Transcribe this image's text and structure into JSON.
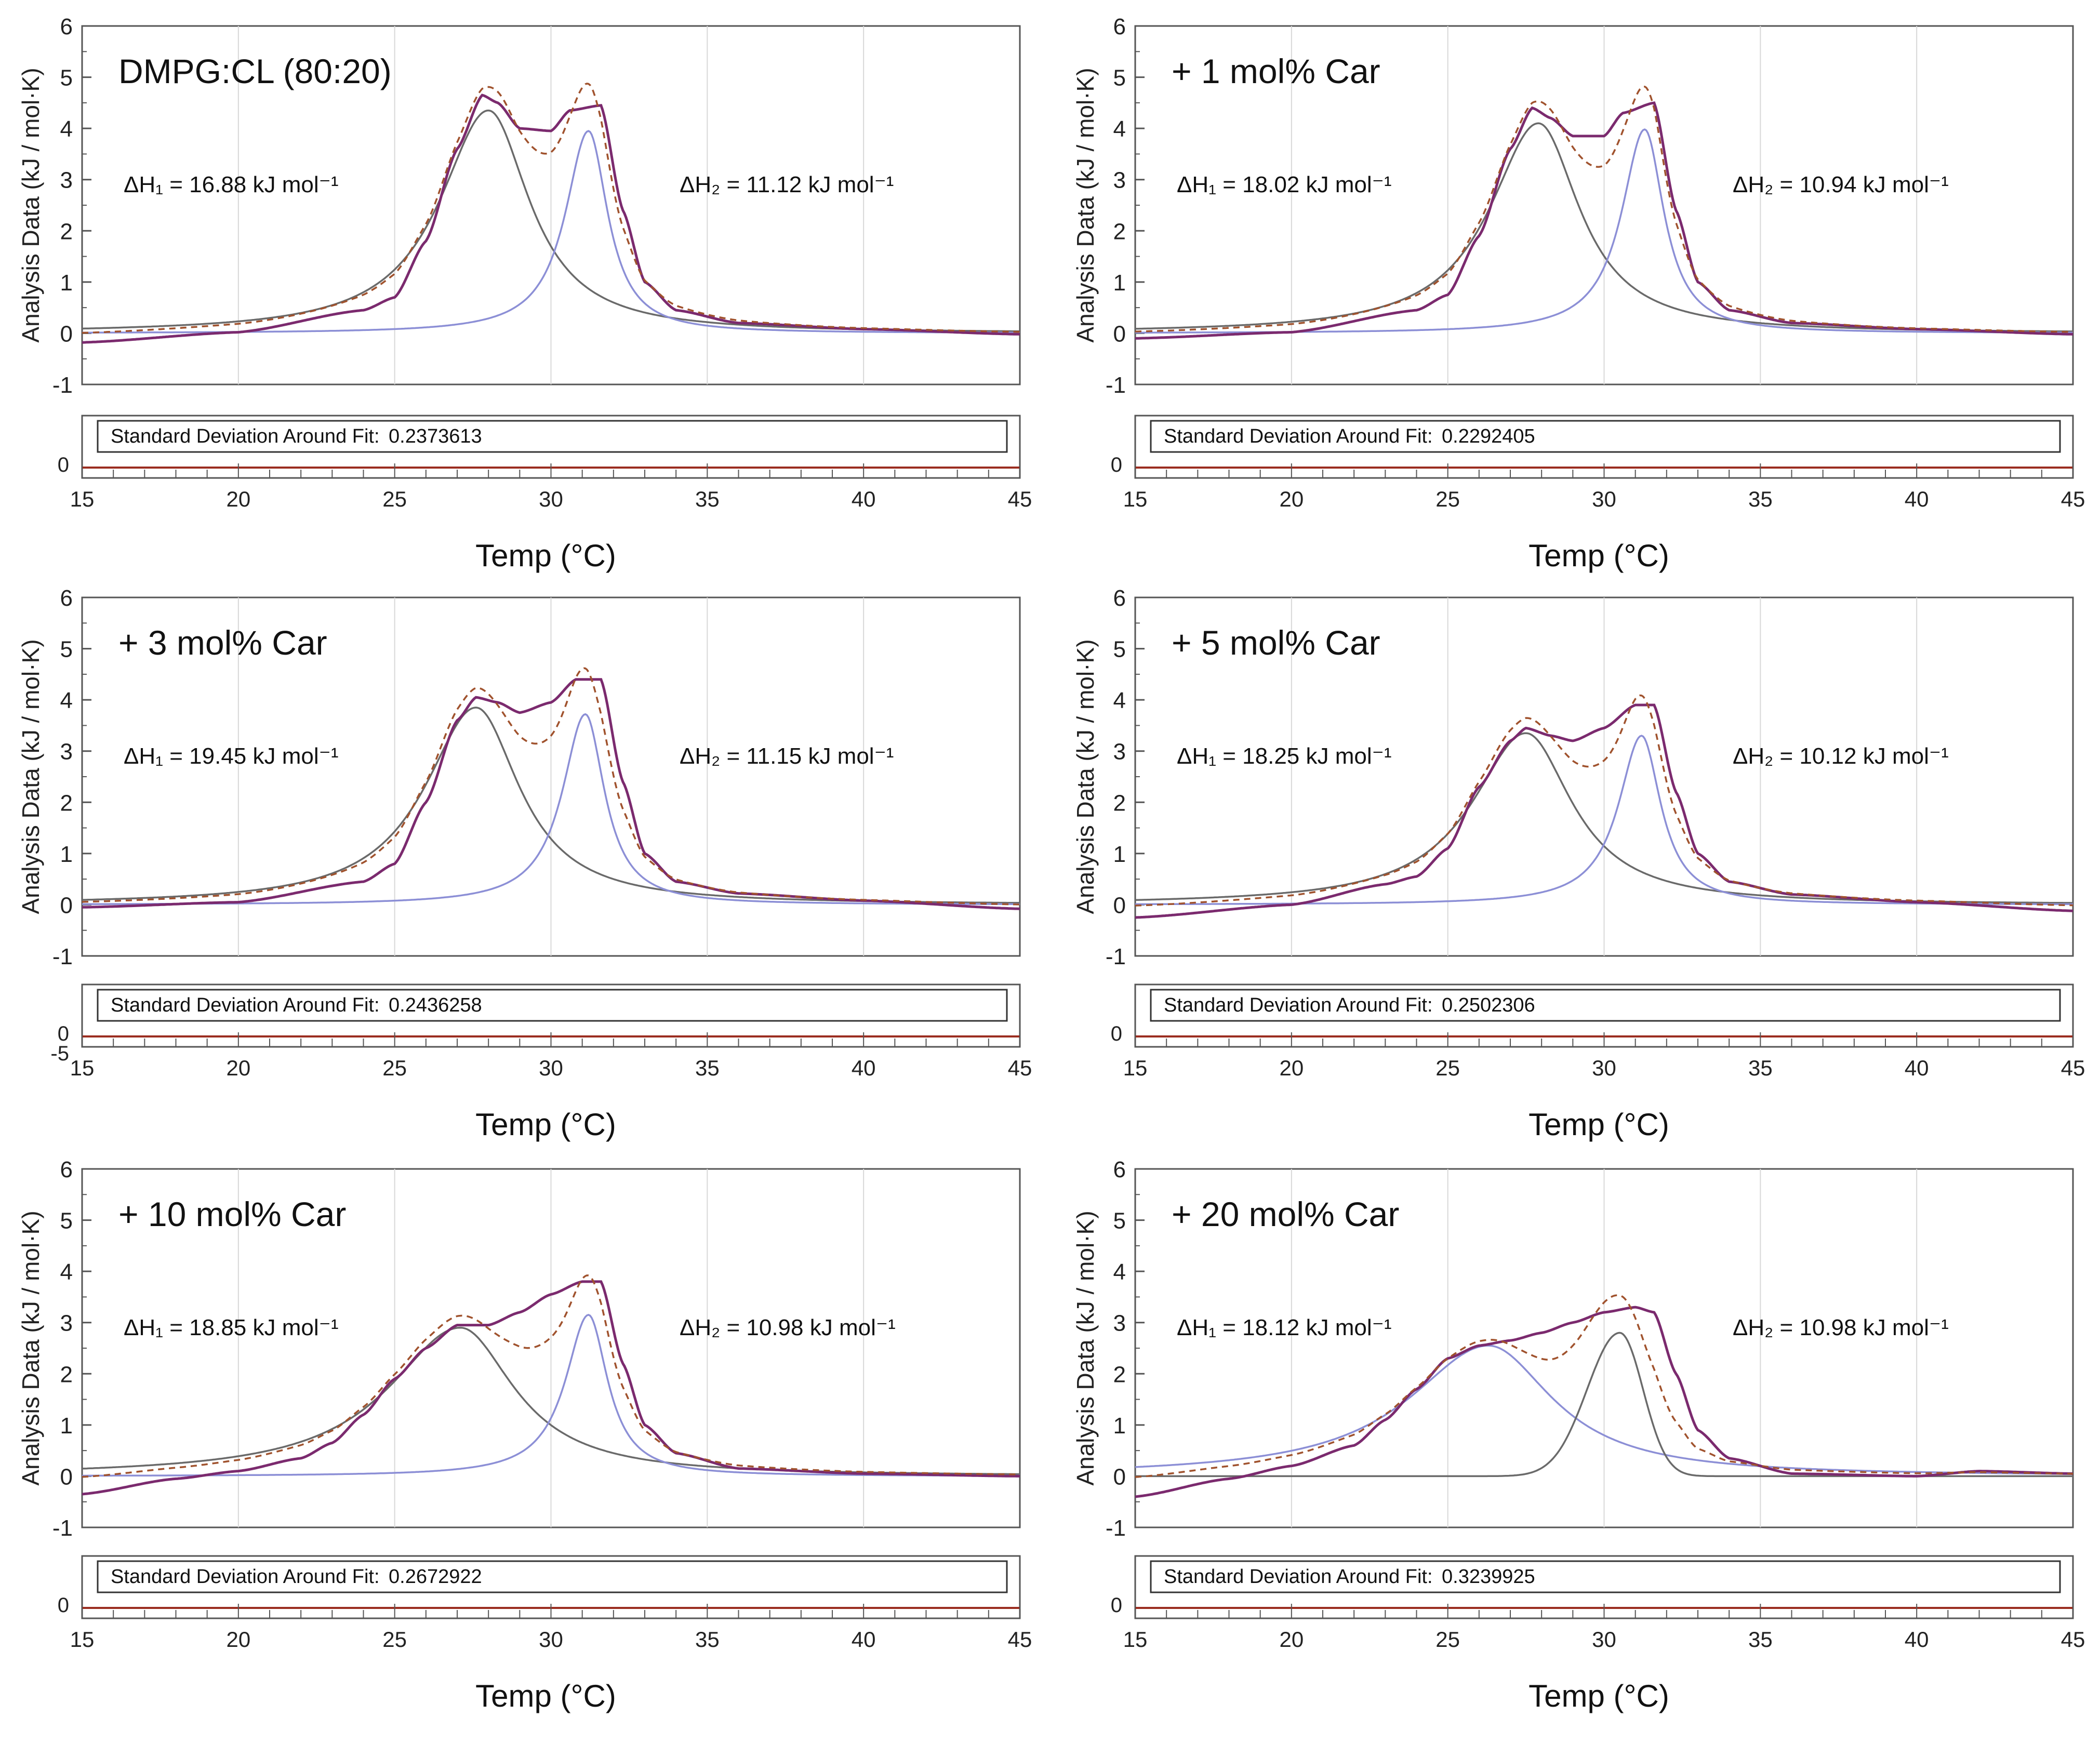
{
  "figure": {
    "xlabel": "Temp (°C)",
    "ylabel": "Analysis Data (kJ / mol·K)",
    "xlim": [
      15,
      45
    ],
    "ylim": [
      -1,
      6
    ],
    "xticks": [
      "15",
      "20",
      "25",
      "30",
      "35",
      "40",
      "45"
    ],
    "yticks": [
      "-1",
      "0",
      "1",
      "2",
      "3",
      "4",
      "5",
      "6"
    ],
    "residual_label": "Standard Deviation Around Fit:",
    "colors": {
      "measured": "#7b2a6e",
      "cumulative_fit": "#a0522d",
      "peak_gray": "#6a6a6a",
      "peak_blue": "#8c8fd6",
      "residual": "#9b2d20",
      "frame": "#555555"
    }
  },
  "chart_data": [
    {
      "type": "line",
      "title": "DMPG:CL (80:20)",
      "dH1": "ΔH₁ = 16.88 kJ mol⁻¹",
      "dH2": "ΔH₂ = 11.12 kJ mol⁻¹",
      "std_dev": "0.2373613",
      "residual_ticks": [
        "0"
      ],
      "peaks": [
        {
          "center": 28.0,
          "height": 4.35,
          "w_left": 1.9,
          "w_right": 1.6,
          "shape": "lorentz",
          "color": "peak_gray"
        },
        {
          "center": 31.2,
          "height": 3.95,
          "w_left": 0.9,
          "w_right": 0.75,
          "shape": "lorentz",
          "color": "peak_blue"
        }
      ],
      "measured_points": [
        [
          15,
          -0.18
        ],
        [
          20,
          0.02
        ],
        [
          24,
          0.45
        ],
        [
          25,
          0.7
        ],
        [
          26,
          1.8
        ],
        [
          27,
          3.6
        ],
        [
          27.8,
          4.65
        ],
        [
          28.3,
          4.5
        ],
        [
          29,
          4.0
        ],
        [
          30,
          3.95
        ],
        [
          30.6,
          4.35
        ],
        [
          31.6,
          4.45
        ],
        [
          32.3,
          2.4
        ],
        [
          33,
          1.0
        ],
        [
          34,
          0.45
        ],
        [
          36,
          0.2
        ],
        [
          40,
          0.08
        ],
        [
          45,
          -0.02
        ]
      ]
    },
    {
      "type": "line",
      "title": "+ 1 mol% Car",
      "dH1": "ΔH₁ = 18.02 kJ mol⁻¹",
      "dH2": "ΔH₂ = 10.94 kJ mol⁻¹",
      "std_dev": "0.2292405",
      "residual_ticks": [
        "0"
      ],
      "peaks": [
        {
          "center": 27.9,
          "height": 4.1,
          "w_left": 1.9,
          "w_right": 1.6,
          "shape": "lorentz",
          "color": "peak_gray"
        },
        {
          "center": 31.3,
          "height": 3.98,
          "w_left": 0.9,
          "w_right": 0.75,
          "shape": "lorentz",
          "color": "peak_blue"
        }
      ],
      "measured_points": [
        [
          15,
          -0.1
        ],
        [
          20,
          0.02
        ],
        [
          24,
          0.45
        ],
        [
          25,
          0.75
        ],
        [
          26,
          1.9
        ],
        [
          27,
          3.6
        ],
        [
          27.7,
          4.4
        ],
        [
          28.3,
          4.2
        ],
        [
          29,
          3.85
        ],
        [
          30,
          3.85
        ],
        [
          30.6,
          4.3
        ],
        [
          31.6,
          4.5
        ],
        [
          32.3,
          2.4
        ],
        [
          33,
          1.0
        ],
        [
          34,
          0.45
        ],
        [
          36,
          0.2
        ],
        [
          40,
          0.08
        ],
        [
          45,
          -0.02
        ]
      ]
    },
    {
      "type": "line",
      "title": "+ 3 mol% Car",
      "dH1": "ΔH₁ = 19.45 kJ mol⁻¹",
      "dH2": "ΔH₂ = 11.15 kJ mol⁻¹",
      "std_dev": "0.2436258",
      "residual_ticks": [
        "0",
        "-5"
      ],
      "peaks": [
        {
          "center": 27.6,
          "height": 3.85,
          "w_left": 2.0,
          "w_right": 1.7,
          "shape": "lorentz",
          "color": "peak_gray"
        },
        {
          "center": 31.1,
          "height": 3.72,
          "w_left": 0.9,
          "w_right": 0.75,
          "shape": "lorentz",
          "color": "peak_blue"
        }
      ],
      "measured_points": [
        [
          15,
          -0.05
        ],
        [
          20,
          0.05
        ],
        [
          24,
          0.45
        ],
        [
          25,
          0.8
        ],
        [
          26,
          2.0
        ],
        [
          27,
          3.6
        ],
        [
          27.6,
          4.05
        ],
        [
          28.3,
          3.95
        ],
        [
          29,
          3.75
        ],
        [
          30,
          3.95
        ],
        [
          30.8,
          4.4
        ],
        [
          31.6,
          4.4
        ],
        [
          32.3,
          2.4
        ],
        [
          33,
          1.0
        ],
        [
          34,
          0.45
        ],
        [
          36,
          0.22
        ],
        [
          40,
          0.08
        ],
        [
          45,
          -0.08
        ]
      ]
    },
    {
      "type": "line",
      "title": "+ 5 mol% Car",
      "dH1": "ΔH₁ = 18.25 kJ mol⁻¹",
      "dH2": "ΔH₂ = 10.12 kJ mol⁻¹",
      "std_dev": "0.2502306",
      "residual_ticks": [
        "0"
      ],
      "peaks": [
        {
          "center": 27.5,
          "height": 3.35,
          "w_left": 2.1,
          "w_right": 1.8,
          "shape": "lorentz",
          "color": "peak_gray"
        },
        {
          "center": 31.2,
          "height": 3.3,
          "w_left": 0.9,
          "w_right": 0.75,
          "shape": "lorentz",
          "color": "peak_blue"
        }
      ],
      "measured_points": [
        [
          15,
          -0.25
        ],
        [
          20,
          0.0
        ],
        [
          23,
          0.4
        ],
        [
          24,
          0.55
        ],
        [
          25,
          1.1
        ],
        [
          26,
          2.3
        ],
        [
          27,
          3.2
        ],
        [
          27.5,
          3.45
        ],
        [
          28.3,
          3.3
        ],
        [
          29,
          3.2
        ],
        [
          30,
          3.45
        ],
        [
          31,
          3.9
        ],
        [
          31.6,
          3.9
        ],
        [
          32.3,
          2.2
        ],
        [
          33,
          1.0
        ],
        [
          34,
          0.45
        ],
        [
          36,
          0.2
        ],
        [
          40,
          0.05
        ],
        [
          45,
          -0.12
        ]
      ]
    },
    {
      "type": "line",
      "title": "+ 10 mol% Car",
      "dH1": "ΔH₁ = 18.85 kJ mol⁻¹",
      "dH2": "ΔH₂ = 10.98 kJ mol⁻¹",
      "std_dev": "0.2672922",
      "residual_ticks": [
        "0"
      ],
      "peaks": [
        {
          "center": 27.1,
          "height": 2.9,
          "w_left": 2.8,
          "w_right": 2.1,
          "shape": "lorentz",
          "color": "peak_gray"
        },
        {
          "center": 31.2,
          "height": 3.15,
          "w_left": 0.9,
          "w_right": 0.75,
          "shape": "lorentz",
          "color": "peak_blue"
        }
      ],
      "measured_points": [
        [
          15,
          -0.35
        ],
        [
          18,
          -0.05
        ],
        [
          20,
          0.1
        ],
        [
          22,
          0.35
        ],
        [
          23,
          0.65
        ],
        [
          24,
          1.2
        ],
        [
          25,
          1.9
        ],
        [
          26,
          2.5
        ],
        [
          27,
          2.95
        ],
        [
          28,
          2.95
        ],
        [
          29,
          3.2
        ],
        [
          30,
          3.55
        ],
        [
          31,
          3.8
        ],
        [
          31.6,
          3.8
        ],
        [
          32.3,
          2.2
        ],
        [
          33,
          1.0
        ],
        [
          34,
          0.45
        ],
        [
          36,
          0.15
        ],
        [
          40,
          0.05
        ],
        [
          45,
          0.0
        ]
      ]
    },
    {
      "type": "line",
      "title": "+ 20 mol% Car",
      "dH1": "ΔH₁ = 18.12 kJ mol⁻¹",
      "dH2": "ΔH₂ = 10.98 kJ mol⁻¹",
      "std_dev": "0.3239925",
      "residual_ticks": [
        "0"
      ],
      "peaks": [
        {
          "center": 26.3,
          "height": 2.55,
          "w_left": 3.1,
          "w_right": 2.5,
          "shape": "lorentz",
          "color": "peak_blue"
        },
        {
          "center": 30.5,
          "height": 2.8,
          "w_left": 1.4,
          "w_right": 1.0,
          "shape": "gauss",
          "color": "peak_gray"
        }
      ],
      "measured_points": [
        [
          15,
          -0.4
        ],
        [
          18,
          -0.05
        ],
        [
          20,
          0.2
        ],
        [
          22,
          0.6
        ],
        [
          23,
          1.1
        ],
        [
          24,
          1.7
        ],
        [
          25,
          2.3
        ],
        [
          26,
          2.55
        ],
        [
          27,
          2.65
        ],
        [
          28,
          2.8
        ],
        [
          29,
          3.0
        ],
        [
          30,
          3.2
        ],
        [
          31,
          3.3
        ],
        [
          31.6,
          3.2
        ],
        [
          32.3,
          2.0
        ],
        [
          33,
          0.9
        ],
        [
          34,
          0.35
        ],
        [
          36,
          0.05
        ],
        [
          40,
          0.0
        ],
        [
          42,
          0.1
        ],
        [
          45,
          0.05
        ]
      ]
    }
  ]
}
